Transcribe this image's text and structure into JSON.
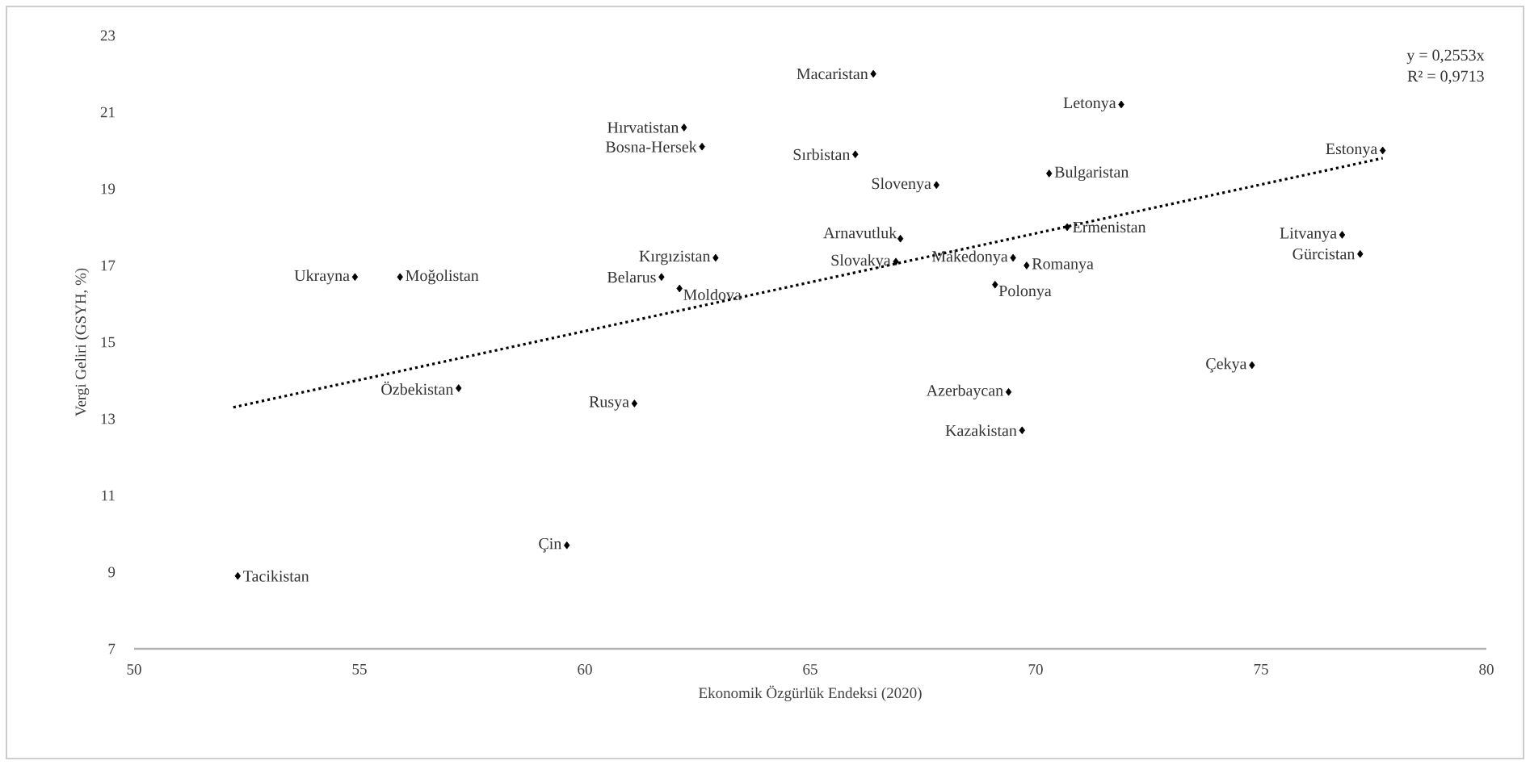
{
  "chart_data": {
    "type": "scatter",
    "xlabel": "Ekonomik Özgürlük Endeksi (2020)",
    "ylabel": "Vergi Geliri (GSYH, %)",
    "xlim": [
      50,
      80
    ],
    "ylim": [
      7,
      23
    ],
    "xticks": [
      50,
      55,
      60,
      65,
      70,
      75,
      80
    ],
    "yticks": [
      7,
      9,
      11,
      13,
      15,
      17,
      19,
      21,
      23
    ],
    "marker": "diamond",
    "grid": false,
    "series": [
      {
        "color": "#000000",
        "x": [
          66.4,
          62.2,
          62.6,
          71.9,
          66.0,
          67.8,
          70.3,
          77.7,
          67.0,
          70.7,
          76.8,
          77.2,
          54.9,
          55.9,
          62.9,
          61.7,
          62.1,
          66.9,
          69.5,
          69.8,
          69.1,
          57.2,
          61.1,
          74.8,
          69.4,
          69.7,
          59.6,
          52.3
        ],
        "values": [
          22.0,
          20.6,
          20.1,
          21.2,
          19.9,
          19.1,
          19.4,
          20.0,
          17.7,
          18.0,
          17.8,
          17.3,
          16.7,
          16.7,
          17.2,
          16.7,
          16.4,
          17.1,
          17.2,
          17.0,
          16.5,
          13.8,
          13.4,
          14.4,
          13.7,
          12.7,
          9.7,
          8.9
        ]
      },
      {
        "type": "line",
        "line_style": "dotted",
        "marker": "none",
        "color": "#000000",
        "x": [
          52.2,
          77.7
        ],
        "values": [
          13.3,
          19.8
        ]
      }
    ],
    "annotations": [
      {
        "text": "Macaristan",
        "x": 66.4,
        "y": 22.0
      },
      {
        "text": "Hırvatistan",
        "x": 62.2,
        "y": 20.6
      },
      {
        "text": "Bosna-Hersek",
        "x": 62.6,
        "y": 20.1
      },
      {
        "text": "Letonya",
        "x": 71.9,
        "y": 21.2
      },
      {
        "text": "Sırbistan",
        "x": 66.0,
        "y": 19.9
      },
      {
        "text": "Slovenya",
        "x": 67.8,
        "y": 19.1
      },
      {
        "text": "Bulgaristan",
        "x": 70.3,
        "y": 19.4
      },
      {
        "text": "Estonya",
        "x": 77.7,
        "y": 20.0
      },
      {
        "text": "Arnavutluk",
        "x": 67.0,
        "y": 17.7
      },
      {
        "text": "Ermenistan",
        "x": 70.7,
        "y": 18.0
      },
      {
        "text": "Litvanya",
        "x": 76.8,
        "y": 17.8
      },
      {
        "text": "Gürcistan",
        "x": 77.2,
        "y": 17.3
      },
      {
        "text": "Ukrayna",
        "x": 54.9,
        "y": 16.7
      },
      {
        "text": "Moğolistan",
        "x": 55.9,
        "y": 16.7
      },
      {
        "text": "Kırgızistan",
        "x": 62.9,
        "y": 17.2
      },
      {
        "text": "Belarus",
        "x": 61.7,
        "y": 16.7
      },
      {
        "text": "Moldova",
        "x": 62.1,
        "y": 16.4
      },
      {
        "text": "Slovakya",
        "x": 66.9,
        "y": 17.1
      },
      {
        "text": "Makedonya",
        "x": 69.5,
        "y": 17.2
      },
      {
        "text": "Romanya",
        "x": 69.8,
        "y": 17.0
      },
      {
        "text": "Polonya",
        "x": 69.1,
        "y": 16.5
      },
      {
        "text": "Özbekistan",
        "x": 57.2,
        "y": 13.8
      },
      {
        "text": "Rusya",
        "x": 61.1,
        "y": 13.4
      },
      {
        "text": "Çekya",
        "x": 74.8,
        "y": 14.4
      },
      {
        "text": "Azerbaycan",
        "x": 69.4,
        "y": 13.7
      },
      {
        "text": "Kazakistan",
        "x": 69.7,
        "y": 12.7
      },
      {
        "text": "Çin",
        "x": 59.6,
        "y": 9.7
      },
      {
        "text": "Tacikistan",
        "x": 52.3,
        "y": 8.9
      },
      "y = 0,2553x",
      "R² = 0,9713"
    ]
  }
}
